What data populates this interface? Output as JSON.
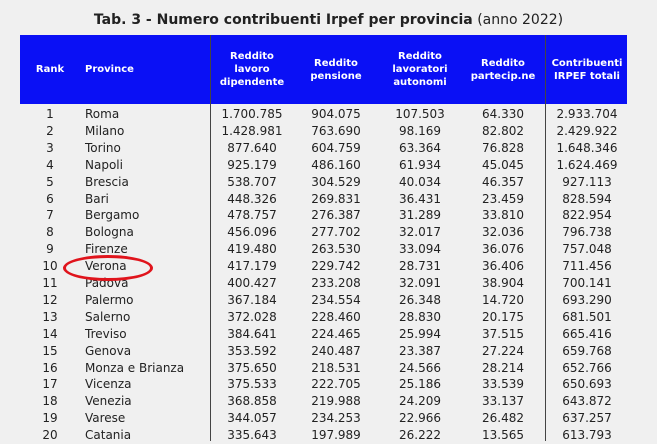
{
  "title": {
    "bold": "Tab. 3 - Numero contribuenti Irpef per provincia",
    "normal": " (anno 2022)"
  },
  "header": [
    "Rank",
    "Province",
    "Reddito lavoro dipendente",
    "Reddito pensione",
    "Reddito lavoratori autonomi",
    "Reddito partecip.ne",
    "Contribuenti IRPEF totali"
  ],
  "highlight": {
    "province": "Verona",
    "color": "#e0141c"
  },
  "colors": {
    "header_bg": "#0a10f5"
  },
  "rows": [
    [
      "1",
      "Roma",
      "1.700.785",
      "904.075",
      "107.503",
      "64.330",
      "2.933.704"
    ],
    [
      "2",
      "Milano",
      "1.428.981",
      "763.690",
      "98.169",
      "82.802",
      "2.429.922"
    ],
    [
      "3",
      "Torino",
      "877.640",
      "604.759",
      "63.364",
      "76.828",
      "1.648.346"
    ],
    [
      "4",
      "Napoli",
      "925.179",
      "486.160",
      "61.934",
      "45.045",
      "1.624.469"
    ],
    [
      "5",
      "Brescia",
      "538.707",
      "304.529",
      "40.034",
      "46.357",
      "927.113"
    ],
    [
      "6",
      "Bari",
      "448.326",
      "269.831",
      "36.431",
      "23.459",
      "828.594"
    ],
    [
      "7",
      "Bergamo",
      "478.757",
      "276.387",
      "31.289",
      "33.810",
      "822.954"
    ],
    [
      "8",
      "Bologna",
      "456.096",
      "277.702",
      "32.017",
      "32.036",
      "796.738"
    ],
    [
      "9",
      "Firenze",
      "419.480",
      "263.530",
      "33.094",
      "36.076",
      "757.048"
    ],
    [
      "10",
      "Verona",
      "417.179",
      "229.742",
      "28.731",
      "36.406",
      "711.456"
    ],
    [
      "11",
      "Padova",
      "400.427",
      "233.208",
      "32.091",
      "38.904",
      "700.141"
    ],
    [
      "12",
      "Palermo",
      "367.184",
      "234.554",
      "26.348",
      "14.720",
      "693.290"
    ],
    [
      "13",
      "Salerno",
      "372.028",
      "228.460",
      "28.830",
      "20.175",
      "681.501"
    ],
    [
      "14",
      "Treviso",
      "384.641",
      "224.465",
      "25.994",
      "37.515",
      "665.416"
    ],
    [
      "15",
      "Genova",
      "353.592",
      "240.487",
      "23.387",
      "27.224",
      "659.768"
    ],
    [
      "16",
      "Monza e Brianza",
      "375.650",
      "218.531",
      "24.566",
      "28.214",
      "652.766"
    ],
    [
      "17",
      "Vicenza",
      "375.533",
      "222.705",
      "25.186",
      "33.539",
      "650.693"
    ],
    [
      "18",
      "Venezia",
      "368.858",
      "219.988",
      "24.209",
      "33.137",
      "643.872"
    ],
    [
      "19",
      "Varese",
      "344.057",
      "234.253",
      "22.966",
      "26.482",
      "637.257"
    ],
    [
      "20",
      "Catania",
      "335.643",
      "197.989",
      "26.222",
      "13.565",
      "613.793"
    ]
  ]
}
